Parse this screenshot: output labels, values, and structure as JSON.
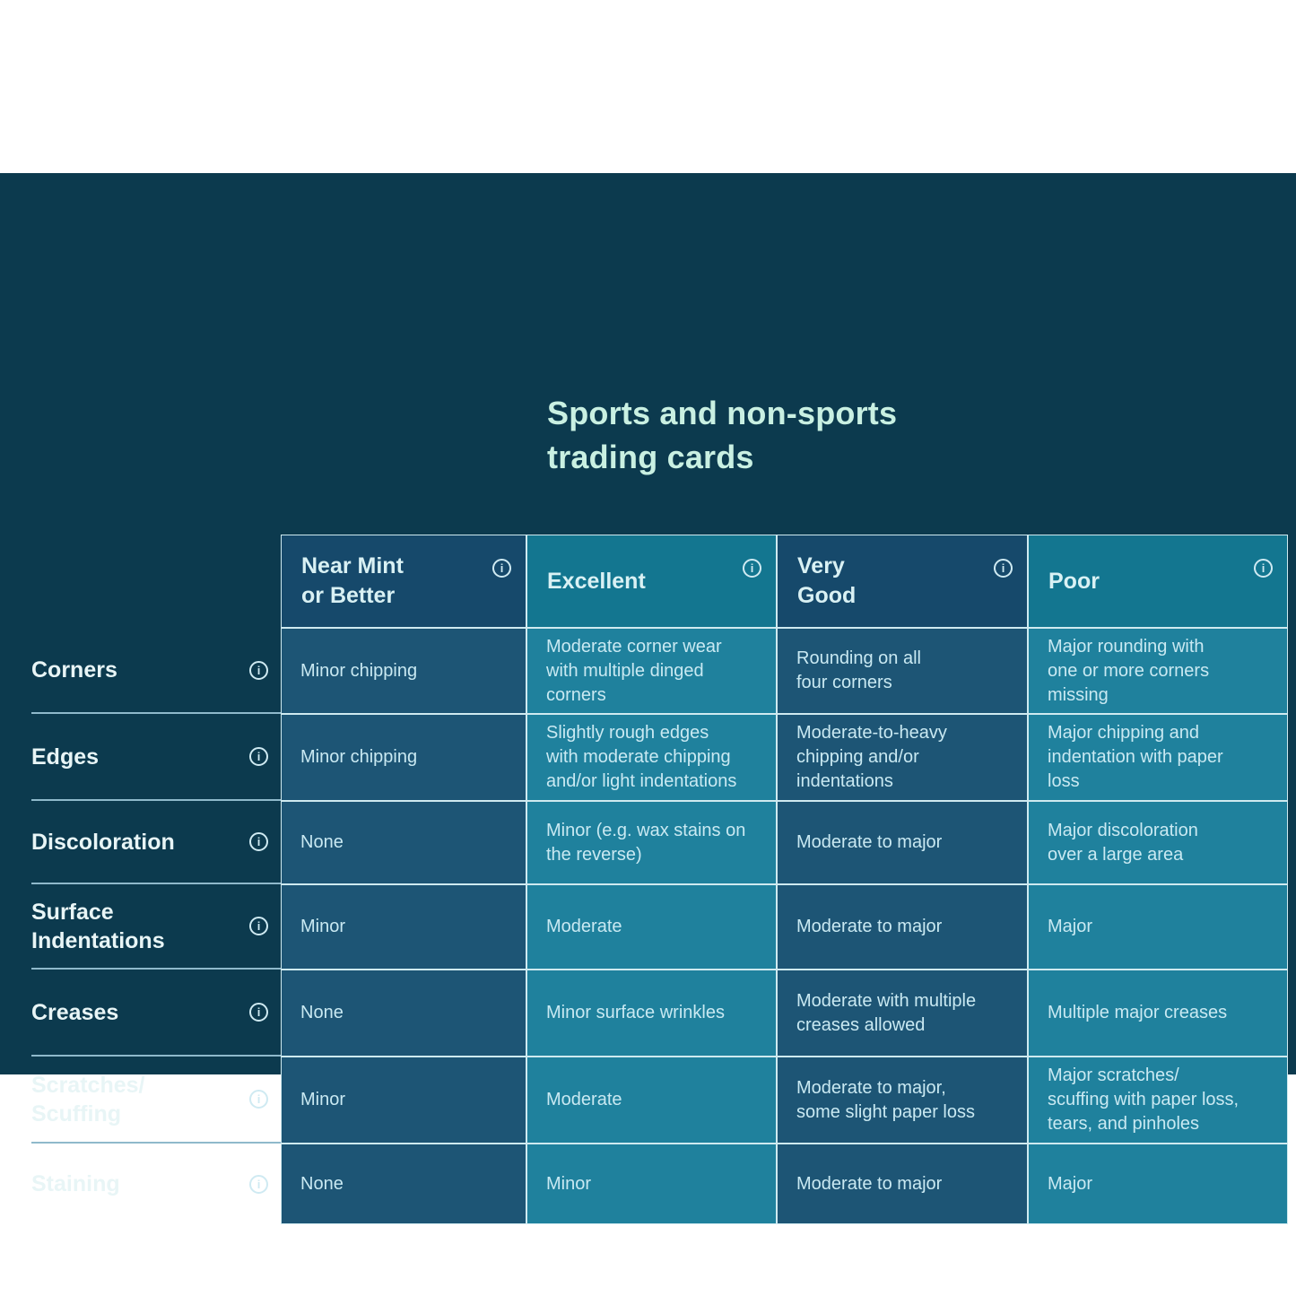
{
  "title": {
    "text": "Sports and non-sports\ntrading cards"
  },
  "icons": {
    "info_glyph": "i"
  },
  "columns": [
    {
      "label": "Near Mint\nor Better",
      "tone": "dark"
    },
    {
      "label": "Excellent",
      "tone": "teal"
    },
    {
      "label": "Very\nGood",
      "tone": "dark"
    },
    {
      "label": "Poor",
      "tone": "teal"
    }
  ],
  "rows": [
    {
      "label": "Corners",
      "cells": [
        "Minor chipping",
        "Moderate corner wear\nwith multiple dinged\ncorners",
        "Rounding on all\nfour corners",
        "Major rounding with\none or more corners\nmissing"
      ]
    },
    {
      "label": "Edges",
      "cells": [
        "Minor chipping",
        "Slightly rough edges\nwith moderate chipping\nand/or light indentations",
        "Moderate-to-heavy\nchipping and/or\nindentations",
        "Major chipping and\nindentation with paper\nloss"
      ]
    },
    {
      "label": "Discoloration",
      "cells": [
        "None",
        "Minor (e.g. wax stains on\nthe reverse)",
        "Moderate to major",
        "Major discoloration\nover a large area"
      ]
    },
    {
      "label": "Surface\nIndentations",
      "cells": [
        "Minor",
        "Moderate",
        "Moderate to major",
        "Major"
      ]
    },
    {
      "label": "Creases",
      "cells": [
        "None",
        "Minor surface wrinkles",
        "Moderate with multiple\ncreases allowed",
        "Multiple major creases"
      ]
    },
    {
      "label": "Scratches/\nScuffing",
      "cells": [
        "Minor",
        "Moderate",
        "Moderate to major,\nsome slight paper loss",
        "Major scratches/\nscuffing with paper loss,\ntears, and pinholes"
      ]
    },
    {
      "label": "Staining",
      "cells": [
        "None",
        "Minor",
        "Moderate to major",
        "Major"
      ]
    }
  ],
  "colors": {
    "page_bg": "#ffffff",
    "panel_bg": "#0c3a4e",
    "header_dark": "#16496b",
    "header_teal": "#137690",
    "body_dark": "#1d5575",
    "body_teal": "#1f819d",
    "grid_line": "#cfeaf0",
    "label_line": "#8fb9cb",
    "title_text": "#c9f0e2",
    "header_text": "#d9f1f4",
    "body_text": "#c9e9f2",
    "label_text": "#e8f5f6",
    "icon_color": "#cfeaf2"
  }
}
